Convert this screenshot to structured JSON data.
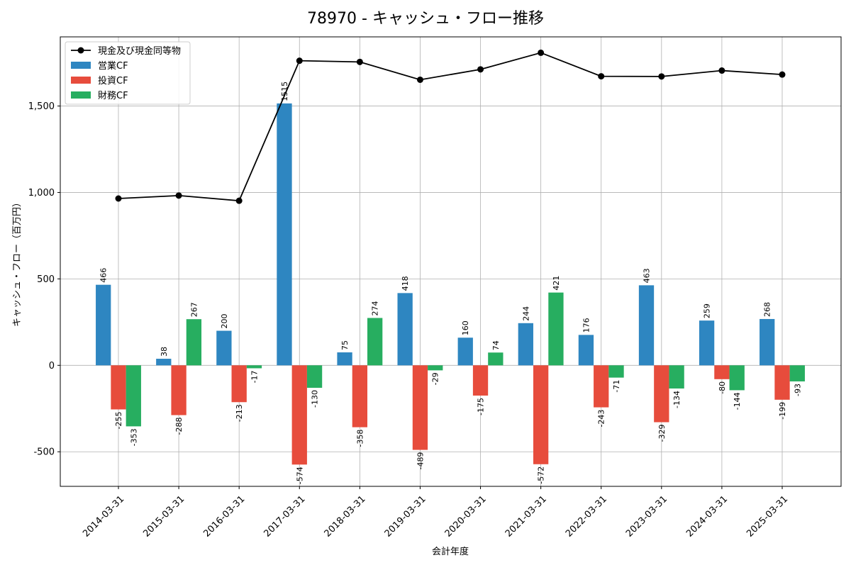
{
  "chart_data": {
    "type": "bar+line",
    "title": "78970 - キャッシュ・フロー推移",
    "xlabel": "会計年度",
    "ylabel": "キャッシュ・フロー（百万円）",
    "ylim": [
      -700,
      1900
    ],
    "yticks": [
      -500,
      0,
      500,
      1000,
      1500
    ],
    "ytick_labels": [
      "-500",
      "0",
      "500",
      "1,000",
      "1,500"
    ],
    "grid": true,
    "legend_position": "top-left",
    "categories": [
      "2014-03-31",
      "2015-03-31",
      "2016-03-31",
      "2017-03-31",
      "2018-03-31",
      "2019-03-31",
      "2020-03-31",
      "2021-03-31",
      "2022-03-31",
      "2023-03-31",
      "2024-03-31",
      "2025-03-31"
    ],
    "series": [
      {
        "name": "営業CF",
        "kind": "bar",
        "color": "#2e86c1",
        "values": [
          466,
          38,
          200,
          1515,
          75,
          418,
          160,
          244,
          176,
          463,
          259,
          268
        ]
      },
      {
        "name": "投資CF",
        "kind": "bar",
        "color": "#e74c3c",
        "values": [
          -255,
          -288,
          -213,
          -574,
          -358,
          -489,
          -175,
          -572,
          -243,
          -329,
          -80,
          -199
        ]
      },
      {
        "name": "財務CF",
        "kind": "bar",
        "color": "#27ae60",
        "values": [
          -353,
          267,
          -17,
          -130,
          274,
          -29,
          74,
          421,
          -71,
          -134,
          -144,
          -93
        ]
      },
      {
        "name": "現金及び現金同等物",
        "kind": "line",
        "color": "#000000",
        "values": [
          965,
          982,
          952,
          1762,
          1755,
          1652,
          1712,
          1808,
          1672,
          1671,
          1705,
          1682
        ]
      }
    ],
    "legend_order": [
      "現金及び現金同等物",
      "営業CF",
      "投資CF",
      "財務CF"
    ]
  }
}
